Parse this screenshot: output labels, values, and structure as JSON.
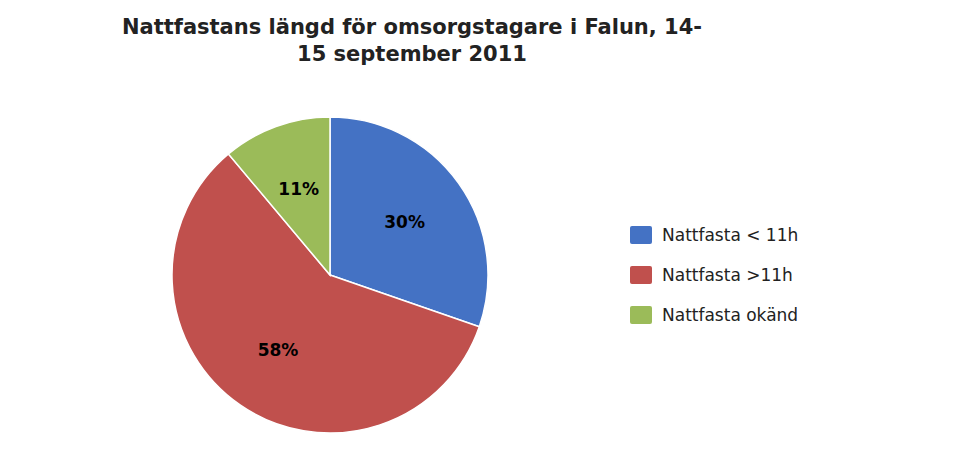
{
  "chart_data": {
    "type": "pie",
    "title": "Nattfastans längd för omsorgstagare i Falun, 14-\n15 september 2011",
    "categories": [
      "Nattfasta < 11h",
      "Nattfasta >11h",
      "Nattfasta okänd"
    ],
    "values": [
      30,
      58,
      11
    ],
    "value_labels": [
      "30%",
      "58%",
      "11%"
    ],
    "colors": [
      "#4472C4",
      "#C0504D",
      "#9BBB59"
    ],
    "data_labels": true,
    "legend": "right"
  }
}
